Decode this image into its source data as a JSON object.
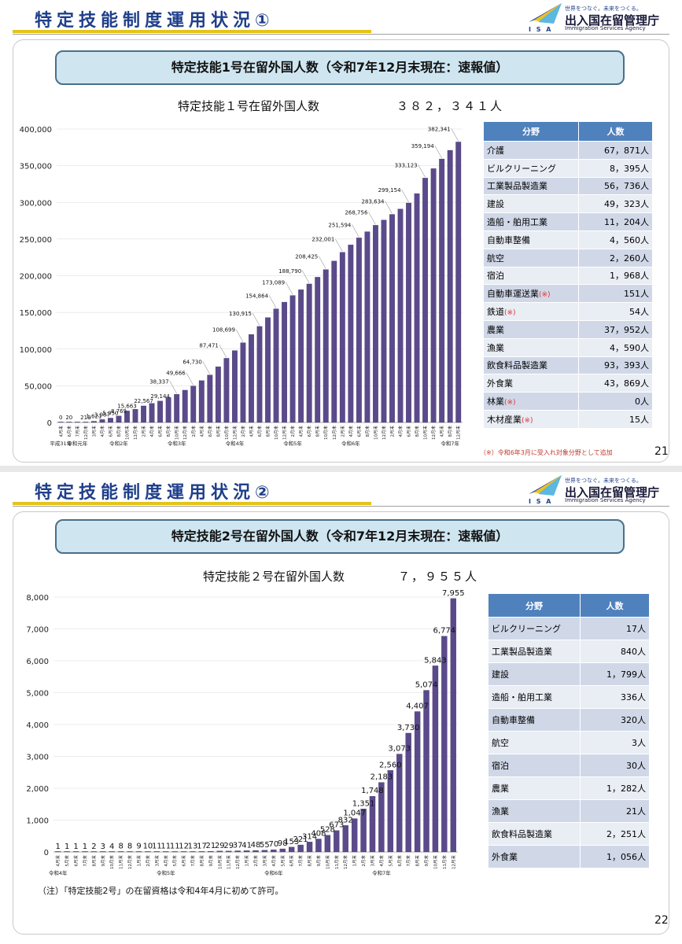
{
  "slide1": {
    "title": "特定技能制度運用状況①",
    "banner": "特定技能1号在留外国人数（令和7年12月末現在：速報値）",
    "chart_title": "特定技能１号在留外国人数",
    "chart_total": "３８２，３４１人",
    "page_number": "21",
    "footnote": "（※）令和6年3月に受入れ対象分野として追加",
    "table": {
      "headers": [
        "分野",
        "人数"
      ],
      "rows": [
        {
          "field": "介護",
          "mark": "",
          "count": "67，871人"
        },
        {
          "field": "ビルクリーニング",
          "mark": "",
          "count": "8，395人"
        },
        {
          "field": "工業製品製造業",
          "mark": "",
          "count": "56，736人"
        },
        {
          "field": "建設",
          "mark": "",
          "count": "49，323人"
        },
        {
          "field": "造船・舶用工業",
          "mark": "",
          "count": "11，204人"
        },
        {
          "field": "自動車整備",
          "mark": "",
          "count": "4，560人"
        },
        {
          "field": "航空",
          "mark": "",
          "count": "2，260人"
        },
        {
          "field": "宿泊",
          "mark": "",
          "count": "1，968人"
        },
        {
          "field": "自動車運送業",
          "mark": "(※)",
          "count": "151人"
        },
        {
          "field": "鉄道",
          "mark": "(※)",
          "count": "54人"
        },
        {
          "field": "農業",
          "mark": "",
          "count": "37，952人"
        },
        {
          "field": "漁業",
          "mark": "",
          "count": "4，590人"
        },
        {
          "field": "飲食料品製造業",
          "mark": "",
          "count": "93，393人"
        },
        {
          "field": "外食業",
          "mark": "",
          "count": "43，869人"
        },
        {
          "field": "林業",
          "mark": "(※)",
          "count": "0人"
        },
        {
          "field": "木材産業",
          "mark": "(※)",
          "count": "15人"
        }
      ]
    }
  },
  "slide2": {
    "title": "特定技能制度運用状況②",
    "banner": "特定技能2号在留外国人数（令和7年12月末現在：速報値）",
    "chart_title": "特定技能２号在留外国人数",
    "chart_total": "７，９５５人",
    "page_number": "22",
    "note": "（注）「特定技能2号」の在留資格は令和4年4月に初めて許可。",
    "table": {
      "headers": [
        "分野",
        "人数"
      ],
      "rows": [
        {
          "field": "ビルクリーニング",
          "count": "17人"
        },
        {
          "field": "工業製品製造業",
          "count": "840人"
        },
        {
          "field": "建設",
          "count": "1，799人"
        },
        {
          "field": "造船・舶用工業",
          "count": "336人"
        },
        {
          "field": "自動車整備",
          "count": "320人"
        },
        {
          "field": "航空",
          "count": "3人"
        },
        {
          "field": "宿泊",
          "count": "30人"
        },
        {
          "field": "農業",
          "count": "1，282人"
        },
        {
          "field": "漁業",
          "count": "21人"
        },
        {
          "field": "飲食料品製造業",
          "count": "2，251人"
        },
        {
          "field": "外食業",
          "count": "1，056人"
        }
      ]
    }
  },
  "logo": {
    "slogan": "世界をつなぐ。未来をつくる。",
    "name": "出入国在留管理庁",
    "english": "Immigration Services Agency",
    "abbr": "I S A"
  },
  "chart_data": [
    {
      "type": "bar",
      "title": "特定技能１号在留外国人数",
      "ylim": [
        0,
        400000
      ],
      "yticks": [
        "0",
        "50,000",
        "100,000",
        "150,000",
        "200,000",
        "250,000",
        "300,000",
        "350,000",
        "400,000"
      ],
      "values": [
        0,
        20,
        50,
        219,
        1621,
        3987,
        5950,
        8769,
        15663,
        18000,
        22567,
        26000,
        29144,
        34000,
        38337,
        44000,
        49666,
        57000,
        64730,
        76000,
        87471,
        98000,
        108699,
        120000,
        130915,
        143000,
        154864,
        164000,
        173089,
        181000,
        188790,
        198000,
        208425,
        220000,
        232001,
        242000,
        251594,
        260000,
        268756,
        276000,
        283634,
        291000,
        299154,
        312000,
        333123,
        346000,
        359194,
        371000,
        382341
      ],
      "data_labels": {
        "0": "0",
        "1": "20",
        "3": "219",
        "4": "1,621",
        "5": "3,987",
        "6": "5,950",
        "7": "8,769",
        "8": "15,663",
        "10": "22,567",
        "12": "29,144",
        "14": "38,337",
        "16": "49,666",
        "18": "64,730",
        "20": "87,471",
        "22": "108,699",
        "24": "130,915",
        "26": "154,864",
        "28": "173,089",
        "30": "188,790",
        "32": "208,425",
        "34": "232,001",
        "36": "251,594",
        "38": "268,756",
        "40": "283,634",
        "42": "299,154",
        "44": "333,123",
        "46": "359,194",
        "48": "382,341"
      },
      "x_labels": {
        "0": "4月末",
        "1": "6月末",
        "2": "7月末",
        "3": "12月末",
        "4": "3月末",
        "5": "4月末",
        "6": "6月末",
        "7": "8月末",
        "8": "10月末",
        "9": "12月末",
        "10": "2月末",
        "11": "4月末",
        "12": "6月末",
        "13": "8月末",
        "14": "10月末",
        "15": "12月末",
        "16": "2月末",
        "17": "4月末",
        "18": "6月末",
        "19": "8月末",
        "20": "10月末",
        "21": "12月末",
        "22": "2月末",
        "23": "4月末",
        "24": "6月末",
        "25": "8月末",
        "26": "10月末",
        "27": "12月末",
        "28": "2月末",
        "29": "4月末",
        "30": "6月末",
        "31": "8月末",
        "32": "10月末",
        "33": "12月末",
        "34": "2月末",
        "35": "4月末",
        "36": "6月末",
        "37": "8月末",
        "38": "10月末",
        "39": "12月末",
        "40": "2月末",
        "41": "4月末",
        "42": "6月末",
        "43": "8月末",
        "44": "10月末",
        "45": "12月末",
        "46": "4月末",
        "47": "8月末",
        "48": "12月末"
      },
      "era_labels": [
        {
          "index": 0,
          "text": "平成31年"
        },
        {
          "index": 2,
          "text": "令和元年"
        },
        {
          "index": 7,
          "text": "令和2年"
        },
        {
          "index": 14,
          "text": "令和3年"
        },
        {
          "index": 21,
          "text": "令和4年"
        },
        {
          "index": 28,
          "text": "令和5年"
        },
        {
          "index": 35,
          "text": "令和6年"
        },
        {
          "index": 47,
          "text": "令和7年"
        }
      ]
    },
    {
      "type": "bar",
      "title": "特定技能２号在留外国人数",
      "ylim": [
        0,
        8000
      ],
      "yticks": [
        "0",
        "1,000",
        "2,000",
        "3,000",
        "4,000",
        "5,000",
        "6,000",
        "7,000",
        "8,000"
      ],
      "values": [
        1,
        1,
        1,
        1,
        2,
        3,
        4,
        8,
        8,
        9,
        10,
        11,
        11,
        11,
        12,
        13,
        17,
        21,
        29,
        29,
        37,
        41,
        48,
        55,
        70,
        98,
        153,
        221,
        314,
        408,
        528,
        673,
        832,
        1047,
        1351,
        1748,
        2183,
        2560,
        3073,
        3730,
        4407,
        5074,
        5843,
        6774,
        7955
      ],
      "data_labels": [
        "1",
        "1",
        "1",
        "1",
        "2",
        "3",
        "4",
        "8",
        "8",
        "9",
        "10",
        "11",
        "11",
        "11",
        "12",
        "13",
        "17",
        "21",
        "29",
        "29",
        "37",
        "41",
        "48",
        "55",
        "70",
        "98",
        "153",
        "221",
        "314",
        "408",
        "528",
        "673",
        "832",
        "1,047",
        "1,351",
        "1,748",
        "2,183",
        "2,560",
        "3,073",
        "3,730",
        "4,407",
        "5,074",
        "5,843",
        "6,774",
        "7,955"
      ],
      "x_labels": [
        "4月末",
        "5月末",
        "6月末",
        "7月末",
        "8月末",
        "9月末",
        "10月末",
        "11月末",
        "12月末",
        "1月末",
        "2月末",
        "3月末",
        "4月末",
        "5月末",
        "6月末",
        "7月末",
        "8月末",
        "9月末",
        "10月末",
        "11月末",
        "12月末",
        "1月末",
        "2月末",
        "3月末",
        "4月末",
        "5月末",
        "6月末",
        "7月末",
        "8月末",
        "9月末",
        "10月末",
        "11月末",
        "12月末",
        "1月末",
        "2月末",
        "3月末",
        "4月末",
        "5月末",
        "6月末",
        "7月末",
        "8月末",
        "9月末",
        "10月末",
        "11月末",
        "12月末"
      ],
      "era_labels": [
        {
          "index": 0,
          "text": "令和4年"
        },
        {
          "index": 12,
          "text": "令和5年"
        },
        {
          "index": 24,
          "text": "令和6年"
        },
        {
          "index": 36,
          "text": "令和7年"
        }
      ]
    }
  ]
}
